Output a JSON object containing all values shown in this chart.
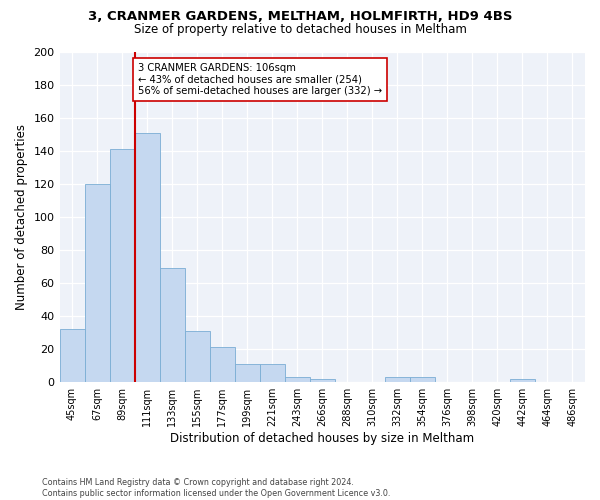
{
  "title1": "3, CRANMER GARDENS, MELTHAM, HOLMFIRTH, HD9 4BS",
  "title2": "Size of property relative to detached houses in Meltham",
  "xlabel": "Distribution of detached houses by size in Meltham",
  "ylabel": "Number of detached properties",
  "footnote1": "Contains HM Land Registry data © Crown copyright and database right 2024.",
  "footnote2": "Contains public sector information licensed under the Open Government Licence v3.0.",
  "bin_labels": [
    "45sqm",
    "67sqm",
    "89sqm",
    "111sqm",
    "133sqm",
    "155sqm",
    "177sqm",
    "199sqm",
    "221sqm",
    "243sqm",
    "266sqm",
    "288sqm",
    "310sqm",
    "332sqm",
    "354sqm",
    "376sqm",
    "398sqm",
    "420sqm",
    "442sqm",
    "464sqm",
    "486sqm"
  ],
  "bar_heights": [
    32,
    120,
    141,
    151,
    69,
    31,
    21,
    11,
    11,
    3,
    2,
    0,
    0,
    3,
    3,
    0,
    0,
    0,
    2,
    0,
    0
  ],
  "bar_color": "#c5d8f0",
  "bar_edge_color": "#7aadd4",
  "vline_x": 3.0,
  "vline_color": "#cc0000",
  "annotation_text": "3 CRANMER GARDENS: 106sqm\n← 43% of detached houses are smaller (254)\n56% of semi-detached houses are larger (332) →",
  "annotation_box_color": "#ffffff",
  "annotation_box_edge": "#cc0000",
  "ylim": [
    0,
    200
  ],
  "yticks": [
    0,
    20,
    40,
    60,
    80,
    100,
    120,
    140,
    160,
    180,
    200
  ],
  "bg_color": "#eef2f9",
  "fig_bg": "#ffffff"
}
